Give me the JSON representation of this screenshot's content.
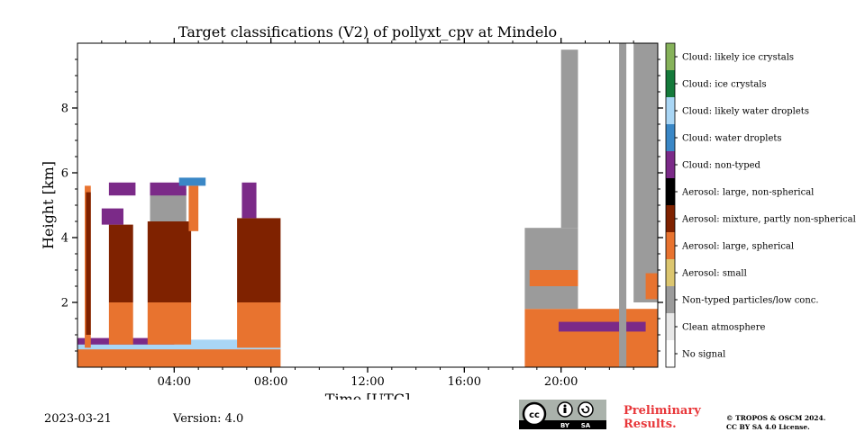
{
  "chart_data": {
    "type": "heatmap",
    "title": "Target classifications (V2) of pollyxt_cpv at Mindelo",
    "xlabel": "Time [UTC]",
    "ylabel": "Height [km]",
    "xlim": [
      0,
      24
    ],
    "ylim": [
      0,
      10
    ],
    "x_ticks": [
      4,
      8,
      12,
      16,
      20
    ],
    "x_tick_labels": [
      "04:00",
      "08:00",
      "12:00",
      "16:00",
      "20:00"
    ],
    "y_ticks": [
      2,
      4,
      6,
      8
    ],
    "y_tick_labels": [
      "2",
      "4",
      "6",
      "8"
    ],
    "legend": [
      {
        "label": "Cloud: likely ice crystals",
        "color": "#86b25a"
      },
      {
        "label": "Cloud: ice crystals",
        "color": "#157a3b"
      },
      {
        "label": "Cloud: likely water droplets",
        "color": "#a9d6f5"
      },
      {
        "label": "Cloud: water droplets",
        "color": "#3a87c6"
      },
      {
        "label": "Cloud: non-typed",
        "color": "#7b2a88"
      },
      {
        "label": "Aerosol: large, non-spherical",
        "color": "#000000"
      },
      {
        "label": "Aerosol: mixture, partly non-spherical",
        "color": "#7f2200"
      },
      {
        "label": "Aerosol: large, spherical",
        "color": "#e8732f"
      },
      {
        "label": "Aerosol: small",
        "color": "#dcc66f"
      },
      {
        "label": "Non-typed particles/low conc.",
        "color": "#9b9b9b"
      },
      {
        "label": "Clean atmosphere",
        "color": "#e8e8e8"
      },
      {
        "label": "No signal",
        "color": "#ffffff"
      }
    ],
    "regions": [
      {
        "class": "Aerosol: large, spherical",
        "x": [
          0.0,
          8.4
        ],
        "y": [
          0.0,
          0.6
        ]
      },
      {
        "class": "Cloud: likely water droplets",
        "x": [
          0.0,
          8.4
        ],
        "y": [
          0.55,
          0.85
        ]
      },
      {
        "class": "Cloud: non-typed",
        "x": [
          0.0,
          4.0
        ],
        "y": [
          0.7,
          0.9
        ]
      },
      {
        "class": "Aerosol: large, spherical",
        "x": [
          0.3,
          0.55
        ],
        "y": [
          0.6,
          5.6
        ]
      },
      {
        "class": "Aerosol: mixture, partly non-spherical",
        "x": [
          0.35,
          0.55
        ],
        "y": [
          1.0,
          5.4
        ]
      },
      {
        "class": "Aerosol: large, spherical",
        "x": [
          1.3,
          2.3
        ],
        "y": [
          0.7,
          2.0
        ]
      },
      {
        "class": "Aerosol: mixture, partly non-spherical",
        "x": [
          1.3,
          2.3
        ],
        "y": [
          2.0,
          4.4
        ]
      },
      {
        "class": "Cloud: non-typed",
        "x": [
          1.0,
          1.9
        ],
        "y": [
          4.4,
          4.9
        ]
      },
      {
        "class": "Cloud: non-typed",
        "x": [
          1.3,
          2.4
        ],
        "y": [
          5.3,
          5.7
        ]
      },
      {
        "class": "Aerosol: large, spherical",
        "x": [
          2.9,
          4.7
        ],
        "y": [
          0.7,
          2.0
        ]
      },
      {
        "class": "Aerosol: mixture, partly non-spherical",
        "x": [
          2.9,
          4.7
        ],
        "y": [
          2.0,
          4.5
        ]
      },
      {
        "class": "Non-typed particles/low conc.",
        "x": [
          3.0,
          4.5
        ],
        "y": [
          4.5,
          5.5
        ]
      },
      {
        "class": "Cloud: non-typed",
        "x": [
          3.0,
          4.5
        ],
        "y": [
          5.3,
          5.7
        ]
      },
      {
        "class": "Aerosol: large, spherical",
        "x": [
          4.6,
          5.0
        ],
        "y": [
          4.2,
          5.6
        ]
      },
      {
        "class": "Cloud: water droplets",
        "x": [
          4.2,
          5.3
        ],
        "y": [
          5.6,
          5.85
        ]
      },
      {
        "class": "Aerosol: large, spherical",
        "x": [
          6.6,
          8.4
        ],
        "y": [
          0.6,
          2.0
        ]
      },
      {
        "class": "Aerosol: mixture, partly non-spherical",
        "x": [
          6.6,
          8.4
        ],
        "y": [
          2.0,
          4.6
        ]
      },
      {
        "class": "Cloud: non-typed",
        "x": [
          6.8,
          7.4
        ],
        "y": [
          4.6,
          5.7
        ]
      },
      {
        "class": "Aerosol: large, spherical",
        "x": [
          18.5,
          24.0
        ],
        "y": [
          0.0,
          1.8
        ]
      },
      {
        "class": "Cloud: non-typed",
        "x": [
          19.9,
          23.5
        ],
        "y": [
          1.1,
          1.4
        ]
      },
      {
        "class": "Non-typed particles/low conc.",
        "x": [
          18.5,
          20.7
        ],
        "y": [
          1.8,
          4.3
        ]
      },
      {
        "class": "Aerosol: large, spherical",
        "x": [
          18.7,
          20.7
        ],
        "y": [
          2.5,
          3.0
        ]
      },
      {
        "class": "Non-typed particles/low conc.",
        "x": [
          20.0,
          20.7
        ],
        "y": [
          4.3,
          9.8
        ]
      },
      {
        "class": "Non-typed particles/low conc.",
        "x": [
          22.4,
          22.7
        ],
        "y": [
          0.0,
          10.0
        ]
      },
      {
        "class": "Non-typed particles/low conc.",
        "x": [
          23.0,
          24.0
        ],
        "y": [
          2.0,
          10.0
        ]
      },
      {
        "class": "Aerosol: large, spherical",
        "x": [
          23.5,
          24.0
        ],
        "y": [
          2.1,
          2.9
        ]
      }
    ]
  },
  "footer": {
    "date": "2023-03-21",
    "version": "Version: 4.0",
    "license_badge": {
      "cc": "cc",
      "by": "BY",
      "sa": "SA"
    },
    "preliminary_line1": "Preliminary",
    "preliminary_line2": "Results.",
    "copyright_line1": "© TROPOS & OSCM 2024.",
    "copyright_line2": "CC BY SA 4.0 License."
  }
}
